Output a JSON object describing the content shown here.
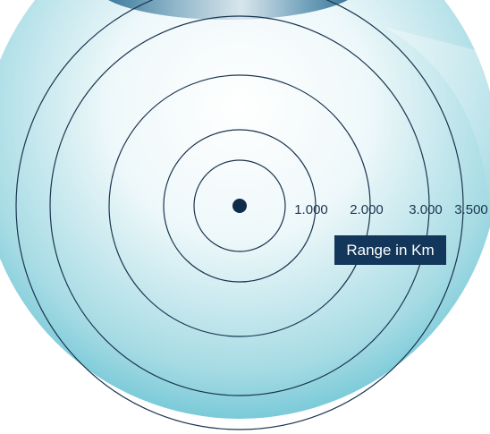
{
  "diagram": {
    "range_labels": [
      "1.000",
      "2.000",
      "3.000",
      "3.500"
    ],
    "unit_label": "Range in Km",
    "colors": {
      "ring": "#1a3550",
      "text": "#1a3550",
      "label_bg": "#12375a",
      "label_text": "#ffffff",
      "background_top": "#ffffff",
      "background_bottom": "#40b4c8"
    }
  }
}
